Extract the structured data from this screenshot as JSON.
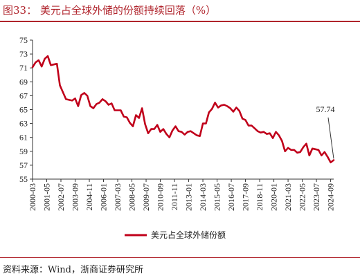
{
  "header": {
    "title": "图33： 美元占全球外储的份额持续回落（%）"
  },
  "footer": {
    "source": "资料来源：Wind，浙商证券研究所"
  },
  "chart_data": {
    "type": "line",
    "title": "",
    "xlabel": "",
    "ylabel": "",
    "ylim": [
      55,
      75
    ],
    "yticks": [
      55,
      57,
      59,
      61,
      63,
      65,
      67,
      69,
      71,
      73,
      75
    ],
    "xlim": [
      "2000-03",
      "2024-12"
    ],
    "xticks": [
      "2000-03",
      "2001-05",
      "2002-07",
      "2003-09",
      "2004-11",
      "2006-01",
      "2007-03",
      "2008-05",
      "2009-07",
      "2010-09",
      "2011-11",
      "2013-01",
      "2014-03",
      "2015-05",
      "2016-07",
      "2017-09",
      "2018-11",
      "2020-01",
      "2021-03",
      "2022-05",
      "2023-07",
      "2024-09"
    ],
    "grid": false,
    "legend_position": "bottom",
    "annotation": {
      "text": "57.74",
      "x": "2024-12",
      "y": 57.74
    },
    "series": [
      {
        "name": "美元占全球外储份额",
        "color": "#c0001a",
        "x": [
          "2000-03",
          "2000-06",
          "2000-09",
          "2000-12",
          "2001-03",
          "2001-06",
          "2001-09",
          "2001-12",
          "2002-03",
          "2002-06",
          "2002-09",
          "2002-12",
          "2003-03",
          "2003-06",
          "2003-09",
          "2003-12",
          "2004-03",
          "2004-06",
          "2004-09",
          "2004-12",
          "2005-03",
          "2005-06",
          "2005-09",
          "2005-12",
          "2006-03",
          "2006-06",
          "2006-09",
          "2006-12",
          "2007-03",
          "2007-06",
          "2007-09",
          "2007-12",
          "2008-03",
          "2008-06",
          "2008-09",
          "2008-12",
          "2009-03",
          "2009-06",
          "2009-09",
          "2009-12",
          "2010-03",
          "2010-06",
          "2010-09",
          "2010-12",
          "2011-03",
          "2011-06",
          "2011-09",
          "2011-12",
          "2012-03",
          "2012-06",
          "2012-09",
          "2012-12",
          "2013-03",
          "2013-06",
          "2013-09",
          "2013-12",
          "2014-03",
          "2014-06",
          "2014-09",
          "2014-12",
          "2015-03",
          "2015-06",
          "2015-09",
          "2015-12",
          "2016-03",
          "2016-06",
          "2016-09",
          "2016-12",
          "2017-03",
          "2017-06",
          "2017-09",
          "2017-12",
          "2018-03",
          "2018-06",
          "2018-09",
          "2018-12",
          "2019-03",
          "2019-06",
          "2019-09",
          "2019-12",
          "2020-03",
          "2020-06",
          "2020-09",
          "2020-12",
          "2021-03",
          "2021-06",
          "2021-09",
          "2021-12",
          "2022-03",
          "2022-06",
          "2022-09",
          "2022-12",
          "2023-03",
          "2023-06",
          "2023-09",
          "2023-12",
          "2024-03",
          "2024-06",
          "2024-09",
          "2024-12"
        ],
        "values": [
          71.1,
          71.8,
          72.1,
          71.2,
          72.3,
          72.7,
          71.4,
          71.5,
          71.6,
          68.5,
          67.5,
          66.5,
          66.4,
          66.3,
          66.6,
          65.5,
          67.1,
          67.4,
          67.0,
          65.5,
          65.2,
          65.8,
          66.0,
          66.5,
          66.2,
          65.7,
          65.9,
          64.9,
          64.9,
          64.9,
          64.0,
          63.9,
          63.1,
          62.6,
          64.2,
          63.8,
          65.2,
          62.9,
          61.6,
          62.2,
          62.2,
          62.8,
          61.8,
          62.2,
          61.5,
          61.0,
          62.0,
          62.6,
          61.9,
          61.8,
          61.4,
          61.8,
          61.9,
          61.6,
          61.3,
          61.2,
          63.0,
          63.0,
          64.6,
          65.1,
          66.0,
          65.3,
          65.6,
          65.7,
          65.5,
          65.2,
          64.7,
          65.3,
          64.8,
          63.7,
          63.5,
          62.7,
          62.7,
          62.3,
          61.9,
          61.7,
          61.8,
          61.5,
          61.6,
          60.9,
          61.8,
          61.3,
          60.5,
          59.0,
          59.5,
          59.2,
          59.2,
          58.8,
          58.9,
          59.6,
          60.1,
          58.4,
          59.4,
          59.3,
          59.2,
          58.4,
          58.9,
          58.2,
          57.4,
          57.74
        ]
      }
    ]
  }
}
